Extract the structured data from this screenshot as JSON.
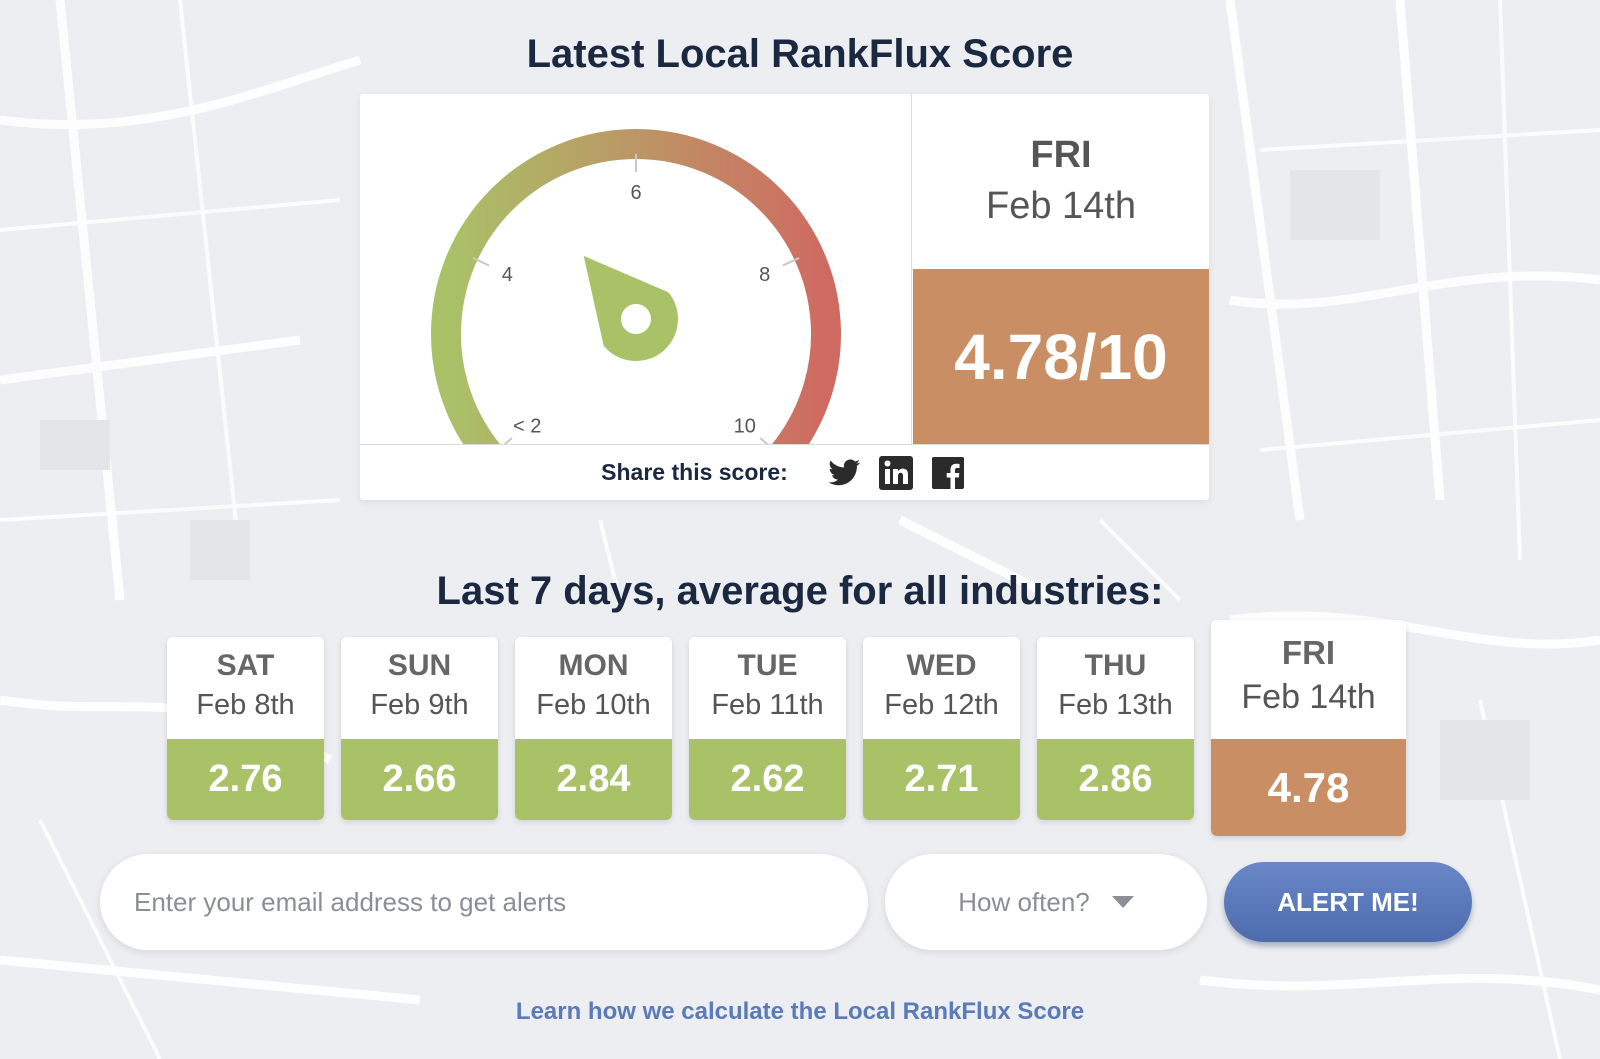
{
  "title": "Latest Local RankFlux Score",
  "gauge": {
    "tick_labels": [
      "< 2",
      "4",
      "6",
      "8",
      "10"
    ],
    "tick_values": [
      2,
      4,
      6,
      8,
      10
    ],
    "min": 2,
    "max": 10,
    "value": 4.78,
    "colors": {
      "low": "#a9c268",
      "high": "#cf6a62",
      "needle": "#a9c268"
    }
  },
  "current": {
    "day": "FRI",
    "date": "Feb 14th",
    "score_text": "4.78/10",
    "color": "#c98e64"
  },
  "share": {
    "label": "Share this score:",
    "icons": [
      "twitter-icon",
      "linkedin-icon",
      "facebook-icon"
    ]
  },
  "week": {
    "title": "Last 7 days, average for all industries:",
    "days": [
      {
        "day": "SAT",
        "date": "Feb 8th",
        "value": "2.76"
      },
      {
        "day": "SUN",
        "date": "Feb 9th",
        "value": "2.66"
      },
      {
        "day": "MON",
        "date": "Feb 10th",
        "value": "2.84"
      },
      {
        "day": "TUE",
        "date": "Feb 11th",
        "value": "2.62"
      },
      {
        "day": "WED",
        "date": "Feb 12th",
        "value": "2.71"
      },
      {
        "day": "THU",
        "date": "Feb 13th",
        "value": "2.86"
      },
      {
        "day": "FRI",
        "date": "Feb 14th",
        "value": "4.78"
      }
    ],
    "colors": {
      "normal": "#a9c268",
      "active": "#c98e64"
    }
  },
  "alerts": {
    "email_placeholder": "Enter your email address to get alerts",
    "frequency_placeholder": "How often?",
    "button_label": "ALERT ME!"
  },
  "learn_link": "Learn how we calculate the Local RankFlux Score"
}
